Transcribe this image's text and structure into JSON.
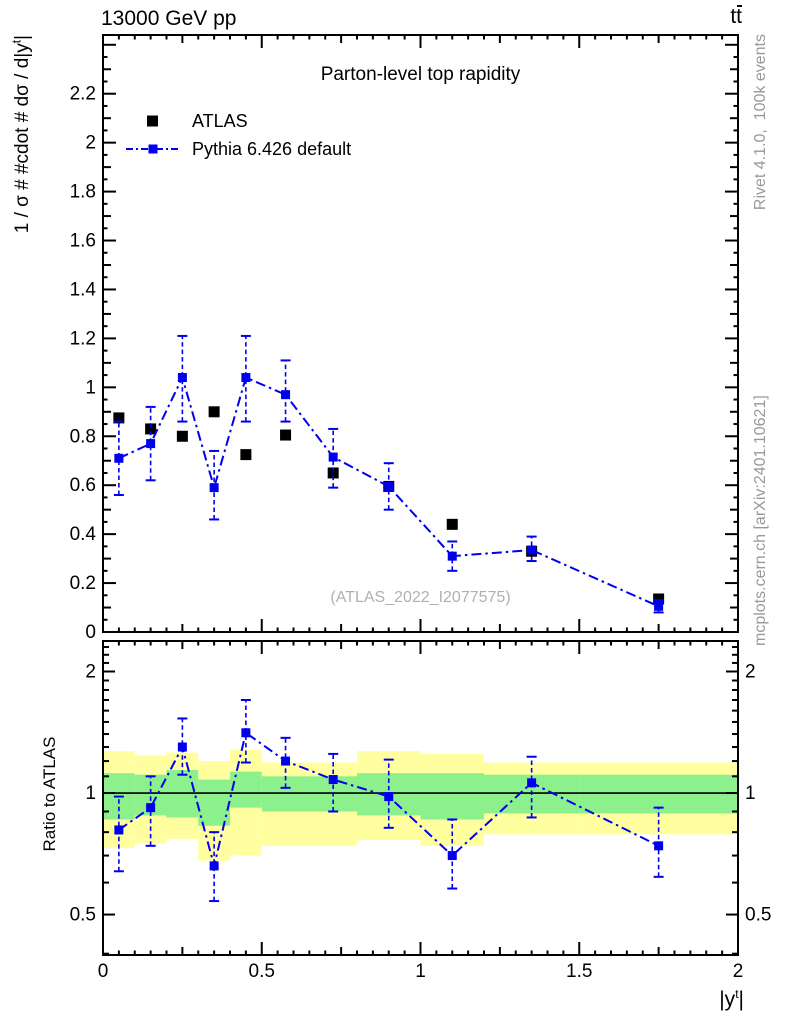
{
  "header": {
    "collision": "13000 GeV pp",
    "process_base": "t",
    "process_bar": "t"
  },
  "plot": {
    "title": "Parton-level top rapidity",
    "watermark": "(ATLAS_2022_I2077575)",
    "x_title": {
      "base": "|y",
      "sup": "t",
      "end": "|"
    },
    "y_title_main": {
      "base": "1 / σ # #cdot # dσ / d|y",
      "sup": "t",
      "end": "|"
    },
    "y_title_ratio": "Ratio to ATLAS"
  },
  "margin_notes": {
    "rivet": "Rivet 4.1.0,  100k events",
    "mcplots": "mcplots.cern.ch [arXiv:2401.10621]"
  },
  "legend": {
    "items": [
      {
        "label": "ATLAS",
        "marker": "filled-square",
        "color": "#000000"
      },
      {
        "label": "Pythia 6.426 default",
        "marker": "square-on-dashdot-line",
        "color": "#0000ee"
      }
    ]
  },
  "colors": {
    "pythia_blue": "#0000ee",
    "atlas_black": "#000000",
    "band_yellow": "#ffffa0",
    "band_green": "#8cf08c",
    "note_gray": "#999999",
    "watermark_gray": "#b0b0b0",
    "frame": "#000000"
  },
  "chart_data": [
    {
      "type": "scatter",
      "panel": "main",
      "title": "Parton-level top rapidity",
      "xlabel": "|y^t|",
      "ylabel": "1 / σ # #cdot # dσ / d|y^t|",
      "xlim": [
        0,
        2
      ],
      "ylim": [
        0,
        2.44
      ],
      "grid": false,
      "legend_position": "upper-left",
      "x": [
        0.05,
        0.15,
        0.25,
        0.35,
        0.45,
        0.575,
        0.725,
        0.9,
        1.1,
        1.35,
        1.75
      ],
      "xticks": [
        [
          0,
          "0"
        ],
        [
          0.5,
          "0.5"
        ],
        [
          1,
          "1"
        ],
        [
          1.5,
          "1.5"
        ],
        [
          2,
          "2"
        ]
      ],
      "yticks": [
        [
          0,
          "0"
        ],
        [
          0.2,
          "0.2"
        ],
        [
          0.4,
          "0.4"
        ],
        [
          0.6,
          "0.6"
        ],
        [
          0.8,
          "0.8"
        ],
        [
          1,
          "1"
        ],
        [
          1.2,
          "1.2"
        ],
        [
          1.4,
          "1.4"
        ],
        [
          1.6,
          "1.6"
        ],
        [
          1.8,
          "1.8"
        ],
        [
          2,
          "2"
        ],
        [
          2.2,
          "2.2"
        ]
      ],
      "series": [
        {
          "name": "ATLAS",
          "marker": "filled-square",
          "color": "#000000",
          "values": [
            0.875,
            0.83,
            0.8,
            0.9,
            0.725,
            0.805,
            0.65,
            0.595,
            0.44,
            0.33,
            0.135
          ]
        },
        {
          "name": "Pythia 6.426 default",
          "marker": "filled-square",
          "color": "#0000ee",
          "line": "dashdot",
          "values": [
            0.71,
            0.77,
            1.04,
            0.59,
            1.04,
            0.97,
            0.715,
            0.595,
            0.31,
            0.335,
            0.105
          ],
          "err_lo": [
            0.56,
            0.62,
            0.86,
            0.46,
            0.86,
            0.86,
            0.59,
            0.5,
            0.25,
            0.29,
            0.08
          ],
          "err_hi": [
            0.86,
            0.92,
            1.21,
            0.74,
            1.21,
            1.11,
            0.83,
            0.69,
            0.37,
            0.39,
            0.13
          ]
        }
      ]
    },
    {
      "type": "scatter",
      "panel": "ratio",
      "ylabel": "Ratio to ATLAS",
      "yscale": "log",
      "xlim": [
        0,
        2
      ],
      "ylim": [
        0.397,
        2.38
      ],
      "reference_line": 1,
      "x": [
        0.05,
        0.15,
        0.25,
        0.35,
        0.45,
        0.575,
        0.725,
        0.9,
        1.1,
        1.35,
        1.75
      ],
      "yticks": [
        [
          0.5,
          "0.5"
        ],
        [
          1,
          "1"
        ],
        [
          2,
          "2"
        ]
      ],
      "values": [
        0.81,
        0.92,
        1.3,
        0.66,
        1.41,
        1.2,
        1.08,
        0.98,
        0.7,
        1.06,
        0.74
      ],
      "err_lo": [
        0.64,
        0.74,
        1.11,
        0.54,
        1.19,
        1.03,
        0.9,
        0.82,
        0.58,
        0.87,
        0.62
      ],
      "err_hi": [
        0.98,
        1.1,
        1.53,
        0.8,
        1.7,
        1.37,
        1.25,
        1.21,
        0.86,
        1.23,
        0.92
      ],
      "bin_edges": [
        0,
        0.1,
        0.2,
        0.3,
        0.4,
        0.5,
        0.65,
        0.8,
        1.0,
        1.2,
        1.5,
        2.0
      ],
      "bands": {
        "yellow_lo": [
          0.73,
          0.75,
          0.77,
          0.68,
          0.7,
          0.74,
          0.74,
          0.765,
          0.74,
          0.79,
          0.79
        ],
        "yellow_hi": [
          1.27,
          1.24,
          1.26,
          1.2,
          1.28,
          1.19,
          1.19,
          1.27,
          1.25,
          1.19,
          1.19
        ],
        "green_lo": [
          0.86,
          0.88,
          0.87,
          0.83,
          0.92,
          0.9,
          0.9,
          0.88,
          0.86,
          0.89,
          0.89
        ],
        "green_hi": [
          1.12,
          1.11,
          1.14,
          1.08,
          1.13,
          1.1,
          1.1,
          1.12,
          1.12,
          1.11,
          1.11
        ]
      }
    }
  ]
}
